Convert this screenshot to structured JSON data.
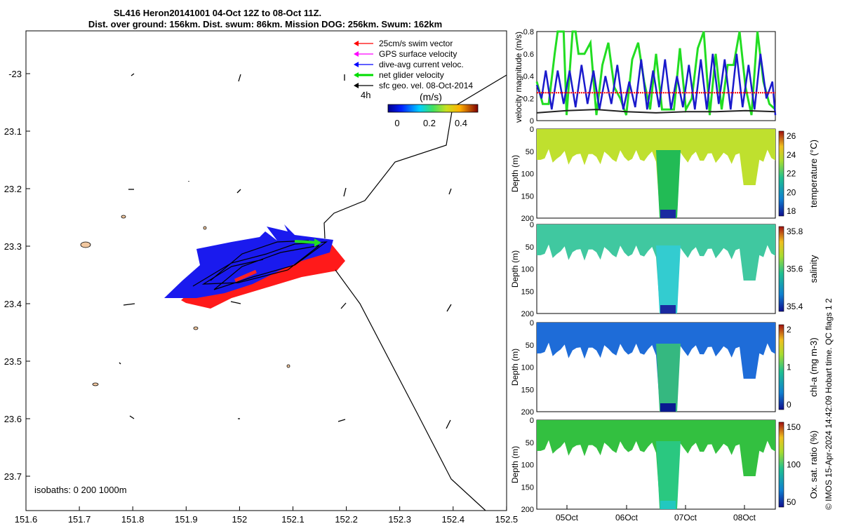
{
  "titles": {
    "line1": "SL416 Heron20141001 04-Oct 12Z to 08-Oct 11Z.",
    "line2": "Dist. over ground: 156km. Dist. swum: 86km. Mission DOG: 256km. Swum: 162km"
  },
  "side_text": "© IMOS 15-Apr-2024 14:42:09 Hobart time. QC flags 1  2",
  "map": {
    "x_ticks": [
      "151.6",
      "151.7",
      "151.8",
      "151.9",
      "152",
      "152.1",
      "152.2",
      "152.3",
      "152.4",
      "152.5"
    ],
    "y_ticks": [
      "-23",
      "23.1",
      "23.2",
      "23.3",
      "23.4",
      "23.5",
      "23.6",
      "23.7"
    ],
    "isobath_label": "isobaths: 0   200  1000m",
    "legend": [
      {
        "label": "25cm/s swim vector",
        "color": "#ff0000"
      },
      {
        "label": "GPS surface velocity",
        "color": "#ff00ff"
      },
      {
        "label": "dive-avg current veloc.",
        "color": "#0000ff"
      },
      {
        "label": "net glider velocity",
        "color": "#00dd00"
      },
      {
        "label": "sfc geo. vel. 08-Oct-2014",
        "color": "#000000"
      }
    ],
    "interval_label": "4h",
    "colorbar_title": "(m/s)",
    "colorbar_ticks": [
      "0",
      "0.2",
      "0.4"
    ]
  },
  "chart_data": [
    {
      "type": "line",
      "title": "",
      "ylabel": "velocity magnitude (m/s)",
      "ylim": [
        0,
        0.8
      ],
      "yticks": [
        "0",
        "0.2",
        "0.4",
        "0.6",
        "0.8"
      ],
      "xlim": [
        0,
        4
      ],
      "series": [
        {
          "name": "net glider velocity",
          "color": "#22dd22",
          "x": [
            0,
            0.1,
            0.2,
            0.3,
            0.35,
            0.45,
            0.5,
            0.6,
            0.65,
            0.7,
            0.8,
            0.9,
            1.0,
            1.1,
            1.2,
            1.3,
            1.4,
            1.5,
            1.6,
            1.7,
            1.8,
            1.9,
            2.0,
            2.1,
            2.2,
            2.3,
            2.4,
            2.5,
            2.6,
            2.7,
            2.8,
            2.9,
            3.0,
            3.1,
            3.2,
            3.3,
            3.4,
            3.5,
            3.6,
            3.7,
            3.8,
            3.9,
            4.0
          ],
          "values": [
            0.35,
            0.15,
            0.15,
            0.6,
            0.8,
            0.8,
            0.05,
            0.8,
            0.8,
            0.6,
            0.6,
            0.7,
            0.05,
            0.5,
            0.7,
            0.3,
            0.2,
            0.05,
            0.55,
            0.7,
            0.35,
            0.1,
            0.6,
            0.1,
            0.1,
            0.1,
            0.65,
            0.1,
            0.2,
            0.65,
            0.8,
            0.05,
            0.6,
            0.1,
            0.5,
            0.5,
            0.8,
            0.3,
            0.05,
            0.8,
            0.35,
            0.15,
            0.1
          ]
        },
        {
          "name": "dive-avg current veloc.",
          "color": "#1a1acc",
          "x": [
            0,
            0.08,
            0.15,
            0.25,
            0.35,
            0.45,
            0.55,
            0.65,
            0.75,
            0.85,
            0.95,
            1.05,
            1.15,
            1.25,
            1.35,
            1.45,
            1.55,
            1.65,
            1.75,
            1.85,
            1.95,
            2.05,
            2.15,
            2.25,
            2.35,
            2.45,
            2.55,
            2.65,
            2.75,
            2.85,
            2.95,
            3.05,
            3.15,
            3.25,
            3.35,
            3.45,
            3.55,
            3.65,
            3.75,
            3.85,
            3.95,
            4.0
          ],
          "values": [
            0.32,
            0.2,
            0.45,
            0.1,
            0.45,
            0.15,
            0.45,
            0.12,
            0.5,
            0.15,
            0.45,
            0.1,
            0.4,
            0.15,
            0.5,
            0.1,
            0.35,
            0.12,
            0.55,
            0.1,
            0.45,
            0.12,
            0.55,
            0.1,
            0.4,
            0.12,
            0.5,
            0.1,
            0.55,
            0.1,
            0.6,
            0.15,
            0.55,
            0.1,
            0.6,
            0.12,
            0.5,
            0.1,
            0.6,
            0.2,
            0.35,
            0.05
          ]
        },
        {
          "name": "25cm/s swim vector",
          "color": "#ff0000",
          "x": [
            0,
            4
          ],
          "values": [
            0.25,
            0.25
          ]
        },
        {
          "name": "sfc geo. vel.",
          "color": "#222222",
          "x": [
            0,
            0.5,
            1,
            1.5,
            2,
            2.5,
            3,
            3.5,
            4
          ],
          "values": [
            0.07,
            0.09,
            0.1,
            0.08,
            0.07,
            0.08,
            0.08,
            0.09,
            0.08
          ]
        }
      ]
    },
    {
      "type": "heatmap",
      "ylabel": "Depth (m)",
      "yticks": [
        "0",
        "50",
        "100",
        "150",
        "200"
      ],
      "colorbar_label": "temperature (°C)",
      "colorbar_ticks": [
        "26",
        "24",
        "22",
        "20",
        "18"
      ],
      "fill_color": "#bfe02e",
      "deep_color": "#22bb55",
      "bottom_color": "#1a2aa0"
    },
    {
      "type": "heatmap",
      "ylabel": "Depth (m)",
      "yticks": [
        "0",
        "50",
        "100",
        "150",
        "200"
      ],
      "colorbar_label": "salinity",
      "colorbar_ticks": [
        "35.8",
        "35.6",
        "35.4"
      ],
      "fill_color": "#40c8a0",
      "deep_color": "#33ccd0",
      "bottom_color": "#1a2aa0"
    },
    {
      "type": "heatmap",
      "ylabel": "Depth (m)",
      "yticks": [
        "0",
        "50",
        "100",
        "150",
        "200"
      ],
      "colorbar_label": "chl-a (mg m-3)",
      "colorbar_ticks": [
        "2",
        "1",
        "0"
      ],
      "fill_color": "#1e6cd8",
      "deep_color": "#35b880",
      "bottom_color": "#0a1a90"
    },
    {
      "type": "heatmap",
      "ylabel": "Depth (m)",
      "yticks": [
        "0",
        "50",
        "100",
        "150",
        "200"
      ],
      "colorbar_label": "Ox. sat. ratio (%)",
      "colorbar_ticks": [
        "150",
        "100",
        "50"
      ],
      "fill_color": "#33c040",
      "deep_color": "#2ac880",
      "bottom_color": "#22c8c0"
    }
  ],
  "time_axis": [
    "05Oct",
    "06Oct",
    "07Oct",
    "08Oct"
  ]
}
